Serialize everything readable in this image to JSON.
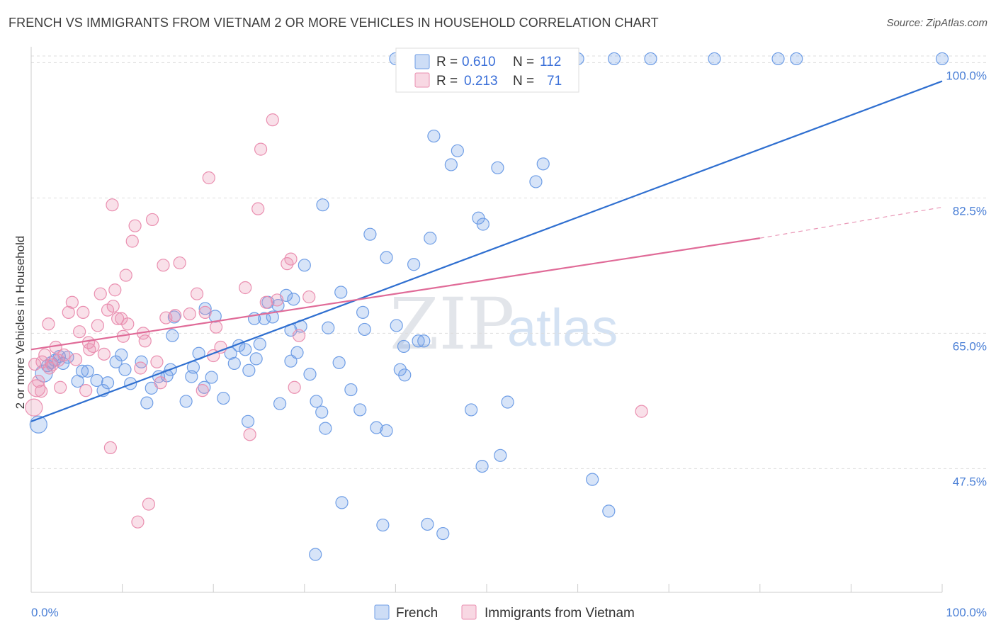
{
  "title": "FRENCH VS IMMIGRANTS FROM VIETNAM 2 OR MORE VEHICLES IN HOUSEHOLD CORRELATION CHART",
  "source": "Source: ZipAtlas.com",
  "colors": {
    "blue": "#6f9ee6",
    "blue_fill": "rgba(111,158,230,0.28)",
    "blue_line": "#2f6fd0",
    "pink": "#ea8fb0",
    "pink_fill": "rgba(234,143,176,0.28)",
    "pink_line": "#e06b98",
    "grid": "#dddddd",
    "tick_text": "#4a7fd6"
  },
  "legend": {
    "rows": [
      {
        "r_label": "R =",
        "r_value": "0.610",
        "n_label": "N =",
        "n_value": "112"
      },
      {
        "r_label": "R =",
        "r_value": "0.213",
        "n_label": "N =",
        "n_value": "71"
      }
    ]
  },
  "watermark": {
    "zip": "ZIP",
    "atlas": "atlas"
  },
  "chart_data": {
    "type": "scatter",
    "title": "FRENCH VS IMMIGRANTS FROM VIETNAM 2 OR MORE VEHICLES IN HOUSEHOLD CORRELATION CHART",
    "xlabel": "",
    "ylabel": "2 or more Vehicles in Household",
    "x_tick_labels": [
      "0.0%",
      "100.0%"
    ],
    "y_tick_labels": [
      "47.5%",
      "65.0%",
      "82.5%",
      "100.0%"
    ],
    "y_ticks": [
      47.5,
      65.0,
      82.5,
      100.0
    ],
    "xlim": [
      0,
      100
    ],
    "ylim": [
      31.5,
      101.5
    ],
    "grid": true,
    "legend_position": "top-center",
    "series": [
      {
        "name": "French",
        "r": 0.61,
        "n": 112,
        "trend": {
          "x0": 0,
          "y0": 53.6,
          "x1": 100,
          "y1": 97.6
        },
        "points": [
          [
            0.8,
            53.2
          ],
          [
            1.4,
            59.8
          ],
          [
            1.8,
            60.8
          ],
          [
            2.2,
            61.2
          ],
          [
            2.6,
            61.5
          ],
          [
            3.1,
            62.0
          ],
          [
            3.5,
            61.1
          ],
          [
            4.0,
            61.9
          ],
          [
            5.1,
            58.8
          ],
          [
            5.6,
            60.1
          ],
          [
            6.2,
            60.1
          ],
          [
            7.2,
            58.9
          ],
          [
            7.9,
            57.6
          ],
          [
            8.4,
            58.6
          ],
          [
            9.3,
            61.3
          ],
          [
            9.9,
            62.2
          ],
          [
            10.3,
            60.3
          ],
          [
            10.9,
            58.5
          ],
          [
            12.1,
            61.3
          ],
          [
            12.7,
            56.0
          ],
          [
            13.2,
            57.9
          ],
          [
            14.0,
            59.4
          ],
          [
            14.9,
            59.5
          ],
          [
            15.3,
            60.3
          ],
          [
            15.5,
            64.7
          ],
          [
            15.7,
            67.1
          ],
          [
            17.0,
            56.2
          ],
          [
            17.8,
            60.6
          ],
          [
            17.6,
            59.4
          ],
          [
            18.4,
            62.4
          ],
          [
            19.0,
            58.0
          ],
          [
            19.1,
            68.2
          ],
          [
            19.8,
            59.3
          ],
          [
            20.2,
            67.2
          ],
          [
            21.1,
            56.6
          ],
          [
            21.9,
            62.4
          ],
          [
            22.3,
            61.1
          ],
          [
            22.8,
            63.4
          ],
          [
            23.5,
            62.9
          ],
          [
            23.9,
            60.2
          ],
          [
            24.5,
            66.9
          ],
          [
            25.1,
            63.6
          ],
          [
            24.7,
            61.7
          ],
          [
            25.6,
            66.9
          ],
          [
            26.0,
            69.0
          ],
          [
            26.5,
            67.1
          ],
          [
            27.1,
            68.6
          ],
          [
            28.0,
            69.9
          ],
          [
            27.3,
            55.9
          ],
          [
            28.5,
            61.4
          ],
          [
            29.2,
            62.5
          ],
          [
            28.8,
            69.4
          ],
          [
            29.6,
            65.9
          ],
          [
            30.0,
            73.8
          ],
          [
            30.6,
            59.7
          ],
          [
            31.3,
            56.2
          ],
          [
            32.0,
            81.6
          ],
          [
            32.6,
            65.7
          ],
          [
            31.9,
            54.8
          ],
          [
            32.3,
            52.7
          ],
          [
            33.8,
            61.2
          ],
          [
            34.0,
            70.3
          ],
          [
            35.1,
            57.7
          ],
          [
            36.1,
            55.1
          ],
          [
            36.6,
            65.5
          ],
          [
            37.2,
            77.8
          ],
          [
            37.9,
            52.8
          ],
          [
            39.0,
            52.4
          ],
          [
            39.0,
            74.8
          ],
          [
            40.1,
            66.0
          ],
          [
            40.5,
            60.3
          ],
          [
            41.0,
            59.6
          ],
          [
            40.9,
            63.3
          ],
          [
            42.0,
            73.9
          ],
          [
            43.1,
            64.0
          ],
          [
            43.8,
            77.3
          ],
          [
            44.2,
            90.5
          ],
          [
            46.1,
            86.8
          ],
          [
            46.8,
            88.6
          ],
          [
            48.3,
            55.1
          ],
          [
            49.1,
            79.9
          ],
          [
            49.6,
            79.1
          ],
          [
            51.2,
            86.4
          ],
          [
            51.5,
            49.2
          ],
          [
            52.3,
            56.1
          ],
          [
            55.4,
            84.6
          ],
          [
            56.2,
            86.9
          ],
          [
            61.6,
            46.1
          ],
          [
            63.4,
            42.0
          ],
          [
            49.5,
            47.8
          ],
          [
            31.2,
            36.4
          ],
          [
            34.1,
            43.1
          ],
          [
            23.8,
            53.6
          ],
          [
            38.6,
            40.2
          ],
          [
            43.5,
            40.3
          ],
          [
            45.2,
            39.1
          ],
          [
            40.0,
            100.5
          ],
          [
            41.8,
            100.5
          ],
          [
            46.0,
            100.5
          ],
          [
            48.0,
            100.5
          ],
          [
            50.0,
            100.5
          ],
          [
            53.0,
            100.5
          ],
          [
            60.0,
            100.5
          ],
          [
            64.0,
            100.5
          ],
          [
            68.0,
            100.5
          ],
          [
            75.0,
            100.5
          ],
          [
            82.0,
            100.5
          ],
          [
            84.0,
            100.5
          ],
          [
            100.0,
            100.5
          ],
          [
            42.5,
            64.0
          ],
          [
            36.4,
            67.7
          ],
          [
            28.5,
            65.4
          ]
        ]
      },
      {
        "name": "Immigrants from Vietnam",
        "r": 0.213,
        "n": 71,
        "trend": {
          "x0": 0,
          "y0": 62.9,
          "x1": 80,
          "y1": 77.3
        },
        "trend_ext": {
          "x0": 80,
          "y0": 77.3,
          "x1": 100,
          "y1": 81.3
        },
        "points": [
          [
            0.3,
            55.4
          ],
          [
            0.6,
            57.9
          ],
          [
            0.8,
            58.8
          ],
          [
            1.2,
            61.3
          ],
          [
            1.5,
            62.2
          ],
          [
            1.9,
            66.2
          ],
          [
            2.3,
            60.9
          ],
          [
            2.7,
            63.2
          ],
          [
            3.2,
            58.0
          ],
          [
            3.6,
            62.2
          ],
          [
            4.1,
            67.7
          ],
          [
            4.5,
            69.0
          ],
          [
            4.9,
            61.6
          ],
          [
            5.3,
            65.2
          ],
          [
            5.7,
            67.7
          ],
          [
            6.0,
            57.6
          ],
          [
            6.4,
            62.9
          ],
          [
            6.8,
            63.3
          ],
          [
            7.3,
            66.0
          ],
          [
            7.6,
            70.1
          ],
          [
            8.0,
            62.3
          ],
          [
            8.4,
            68.0
          ],
          [
            8.7,
            50.2
          ],
          [
            8.9,
            81.6
          ],
          [
            9.2,
            70.6
          ],
          [
            9.5,
            66.9
          ],
          [
            9.9,
            66.9
          ],
          [
            10.1,
            64.6
          ],
          [
            10.4,
            72.5
          ],
          [
            10.6,
            66.2
          ],
          [
            11.1,
            76.9
          ],
          [
            11.4,
            78.9
          ],
          [
            11.7,
            40.6
          ],
          [
            12.0,
            60.5
          ],
          [
            12.3,
            65.0
          ],
          [
            12.9,
            42.9
          ],
          [
            13.3,
            79.7
          ],
          [
            13.8,
            61.3
          ],
          [
            14.2,
            58.6
          ],
          [
            14.5,
            73.8
          ],
          [
            16.3,
            74.1
          ],
          [
            17.4,
            67.5
          ],
          [
            18.2,
            70.1
          ],
          [
            18.8,
            57.6
          ],
          [
            19.1,
            67.7
          ],
          [
            19.5,
            85.1
          ],
          [
            20.0,
            62.1
          ],
          [
            20.8,
            63.2
          ],
          [
            23.5,
            70.9
          ],
          [
            24.0,
            51.9
          ],
          [
            24.9,
            81.1
          ],
          [
            25.2,
            88.8
          ],
          [
            26.5,
            92.6
          ],
          [
            27.0,
            69.3
          ],
          [
            28.1,
            74.0
          ],
          [
            28.5,
            74.6
          ],
          [
            28.9,
            58.0
          ],
          [
            29.4,
            64.7
          ],
          [
            30.5,
            69.7
          ],
          [
            67.0,
            54.9
          ],
          [
            14.8,
            67.0
          ],
          [
            3.0,
            61.5
          ],
          [
            1.1,
            57.5
          ],
          [
            0.4,
            61.0
          ],
          [
            2.0,
            60.5
          ],
          [
            6.3,
            63.8
          ],
          [
            9.0,
            68.5
          ],
          [
            12.5,
            64.0
          ],
          [
            15.8,
            67.3
          ],
          [
            20.3,
            65.8
          ],
          [
            25.8,
            69.0
          ]
        ]
      }
    ]
  },
  "bottom_legend": [
    "French",
    "Immigrants from Vietnam"
  ]
}
